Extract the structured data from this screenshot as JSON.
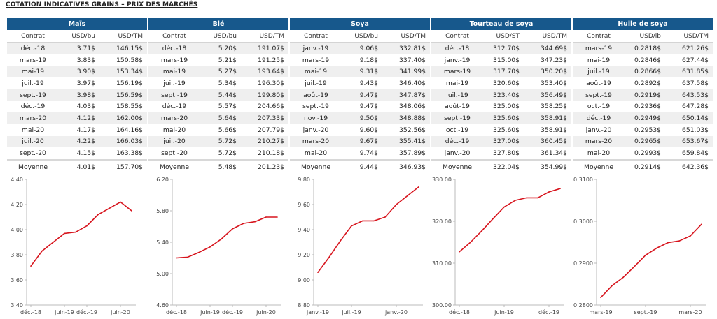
{
  "page": {
    "title": "COTATION INDICATIVES GRAINS – PRIX DES MARCHÉS"
  },
  "colors": {
    "header_bg": "#17588c",
    "line": "#d7141d"
  },
  "commodities": [
    {
      "name": "Maïs",
      "col_headers": [
        "Contrat",
        "USD/bu",
        "USD/TM"
      ],
      "rows": [
        [
          "déc.-18",
          "3.71$",
          "146.15$"
        ],
        [
          "mars-19",
          "3.83$",
          "150.58$"
        ],
        [
          "mai-19",
          "3.90$",
          "153.34$"
        ],
        [
          "juil.-19",
          "3.97$",
          "156.19$"
        ],
        [
          "sept.-19",
          "3.98$",
          "156.59$"
        ],
        [
          "déc.-19",
          "4.03$",
          "158.55$"
        ],
        [
          "mars-20",
          "4.12$",
          "162.00$"
        ],
        [
          "mai-20",
          "4.17$",
          "164.16$"
        ],
        [
          "juil.-20",
          "4.22$",
          "166.03$"
        ],
        [
          "sept.-20",
          "4.15$",
          "163.38$"
        ]
      ],
      "average": [
        "Moyenne",
        "4.01$",
        "157.70$"
      ]
    },
    {
      "name": "Blé",
      "col_headers": [
        "Contrat",
        "USD/bu",
        "USD/TM"
      ],
      "rows": [
        [
          "déc.-18",
          "5.20$",
          "191.07$"
        ],
        [
          "mars-19",
          "5.21$",
          "191.25$"
        ],
        [
          "mai-19",
          "5.27$",
          "193.64$"
        ],
        [
          "juil.-19",
          "5.34$",
          "196.30$"
        ],
        [
          "sept.-19",
          "5.44$",
          "199.80$"
        ],
        [
          "déc.-19",
          "5.57$",
          "204.66$"
        ],
        [
          "mars-20",
          "5.64$",
          "207.33$"
        ],
        [
          "mai-20",
          "5.66$",
          "207.79$"
        ],
        [
          "juil.-20",
          "5.72$",
          "210.27$"
        ],
        [
          "sept.-20",
          "5.72$",
          "210.18$"
        ]
      ],
      "average": [
        "Moyenne",
        "5.48$",
        "201.23$"
      ]
    },
    {
      "name": "Soya",
      "col_headers": [
        "Contrat",
        "USD/bu",
        "USD/TM"
      ],
      "rows": [
        [
          "janv.-19",
          "9.06$",
          "332.81$"
        ],
        [
          "mars-19",
          "9.18$",
          "337.40$"
        ],
        [
          "mai-19",
          "9.31$",
          "341.99$"
        ],
        [
          "juil.-19",
          "9.43$",
          "346.40$"
        ],
        [
          "août-19",
          "9.47$",
          "347.87$"
        ],
        [
          "sept.-19",
          "9.47$",
          "348.06$"
        ],
        [
          "nov.-19",
          "9.50$",
          "348.88$"
        ],
        [
          "janv.-20",
          "9.60$",
          "352.56$"
        ],
        [
          "mars-20",
          "9.67$",
          "355.41$"
        ],
        [
          "mai-20",
          "9.74$",
          "357.89$"
        ]
      ],
      "average": [
        "Moyenne",
        "9.44$",
        "346.93$"
      ]
    },
    {
      "name": "Tourteau de soya",
      "col_headers": [
        "Contrat",
        "USD/ST",
        "USD/TM"
      ],
      "rows": [
        [
          "déc.-18",
          "312.70$",
          "344.69$"
        ],
        [
          "janv.-19",
          "315.00$",
          "347.23$"
        ],
        [
          "mars-19",
          "317.70$",
          "350.20$"
        ],
        [
          "mai-19",
          "320.60$",
          "353.40$"
        ],
        [
          "juil.-19",
          "323.40$",
          "356.49$"
        ],
        [
          "août-19",
          "325.00$",
          "358.25$"
        ],
        [
          "sept.-19",
          "325.60$",
          "358.91$"
        ],
        [
          "oct.-19",
          "325.60$",
          "358.91$"
        ],
        [
          "déc.-19",
          "327.00$",
          "360.45$"
        ],
        [
          "janv.-20",
          "327.80$",
          "361.34$"
        ]
      ],
      "average": [
        "Moyenne",
        "322.04$",
        "354.99$"
      ]
    },
    {
      "name": "Huile de soya",
      "col_headers": [
        "Contrat",
        "USD/lb",
        "USD/TM"
      ],
      "rows": [
        [
          "mars-19",
          "0.2818$",
          "621.26$"
        ],
        [
          "mai-19",
          "0.2846$",
          "627.44$"
        ],
        [
          "juil.-19",
          "0.2866$",
          "631.85$"
        ],
        [
          "août-19",
          "0.2892$",
          "637.58$"
        ],
        [
          "sept.-19",
          "0.2919$",
          "643.53$"
        ],
        [
          "oct.-19",
          "0.2936$",
          "647.28$"
        ],
        [
          "déc.-19",
          "0.2949$",
          "650.14$"
        ],
        [
          "janv.-20",
          "0.2953$",
          "651.03$"
        ],
        [
          "mars-20",
          "0.2965$",
          "653.67$"
        ],
        [
          "mai-20",
          "0.2993$",
          "659.84$"
        ]
      ],
      "average": [
        "Moyenne",
        "0.2914$",
        "642.36$"
      ]
    }
  ],
  "chart_data": [
    {
      "type": "line",
      "x": [
        "déc.-18",
        "mars-19",
        "mai-19",
        "juil.-19",
        "sept.-19",
        "déc.-19",
        "mars-20",
        "mai-20",
        "juil.-20",
        "sept.-20"
      ],
      "values": [
        3.71,
        3.83,
        3.9,
        3.97,
        3.98,
        4.03,
        4.12,
        4.17,
        4.22,
        4.15
      ],
      "ylim": [
        3.4,
        4.4
      ],
      "yticks": [
        "3.40",
        "3.60",
        "3.80",
        "4.00",
        "4.20",
        "4.40"
      ],
      "xticks": [
        {
          "label": "déc.-18",
          "index": 0
        },
        {
          "label": "juin-19",
          "index": 3
        },
        {
          "label": "déc.-19",
          "index": 5
        },
        {
          "label": "juin-20",
          "index": 8
        }
      ],
      "grid": false
    },
    {
      "type": "line",
      "x": [
        "déc.-18",
        "mars-19",
        "mai-19",
        "juil.-19",
        "sept.-19",
        "déc.-19",
        "mars-20",
        "mai-20",
        "juil.-20",
        "sept.-20"
      ],
      "values": [
        5.2,
        5.21,
        5.27,
        5.34,
        5.44,
        5.57,
        5.64,
        5.66,
        5.72,
        5.72
      ],
      "ylim": [
        4.6,
        6.2
      ],
      "yticks": [
        "4.60",
        "5.00",
        "5.40",
        "5.80",
        "6.20"
      ],
      "xticks": [
        {
          "label": "déc.-18",
          "index": 0
        },
        {
          "label": "juin-19",
          "index": 3
        },
        {
          "label": "déc.-19",
          "index": 5
        },
        {
          "label": "juin-20",
          "index": 8
        }
      ],
      "grid": false
    },
    {
      "type": "line",
      "x": [
        "janv.-19",
        "mars-19",
        "mai-19",
        "juil.-19",
        "août-19",
        "sept.-19",
        "nov.-19",
        "janv.-20",
        "mars-20",
        "mai-20"
      ],
      "values": [
        9.06,
        9.18,
        9.31,
        9.43,
        9.47,
        9.47,
        9.5,
        9.6,
        9.67,
        9.74
      ],
      "ylim": [
        8.8,
        9.8
      ],
      "yticks": [
        "8.80",
        "9.00",
        "9.20",
        "9.40",
        "9.60",
        "9.80"
      ],
      "xticks": [
        {
          "label": "janv.-19",
          "index": 0
        },
        {
          "label": "juil.-19",
          "index": 3
        },
        {
          "label": "janv.-20",
          "index": 7
        }
      ],
      "grid": false
    },
    {
      "type": "line",
      "x": [
        "déc.-18",
        "janv.-19",
        "mars-19",
        "mai-19",
        "juil.-19",
        "août-19",
        "sept.-19",
        "oct.-19",
        "déc.-19",
        "janv.-20"
      ],
      "values": [
        312.7,
        315.0,
        317.7,
        320.6,
        323.4,
        325.0,
        325.6,
        325.6,
        327.0,
        327.8
      ],
      "ylim": [
        300.0,
        330.0
      ],
      "yticks": [
        "300.00",
        "310.00",
        "320.00",
        "330.00"
      ],
      "xticks": [
        {
          "label": "déc.-18",
          "index": 0
        },
        {
          "label": "juin-19",
          "index": 4
        },
        {
          "label": "déc.-19",
          "index": 8
        }
      ],
      "grid": false
    },
    {
      "type": "line",
      "x": [
        "mars-19",
        "mai-19",
        "juil.-19",
        "août-19",
        "sept.-19",
        "oct.-19",
        "déc.-19",
        "janv.-20",
        "mars-20",
        "mai-20"
      ],
      "values": [
        0.2818,
        0.2846,
        0.2866,
        0.2892,
        0.2919,
        0.2936,
        0.2949,
        0.2953,
        0.2965,
        0.2993
      ],
      "ylim": [
        0.28,
        0.31
      ],
      "yticks": [
        "0.2800",
        "0.2900",
        "0.3000",
        "0.3100"
      ],
      "xticks": [
        {
          "label": "mars-19",
          "index": 0
        },
        {
          "label": "sept.-19",
          "index": 4
        },
        {
          "label": "mars-20",
          "index": 8
        }
      ],
      "grid": false
    }
  ]
}
